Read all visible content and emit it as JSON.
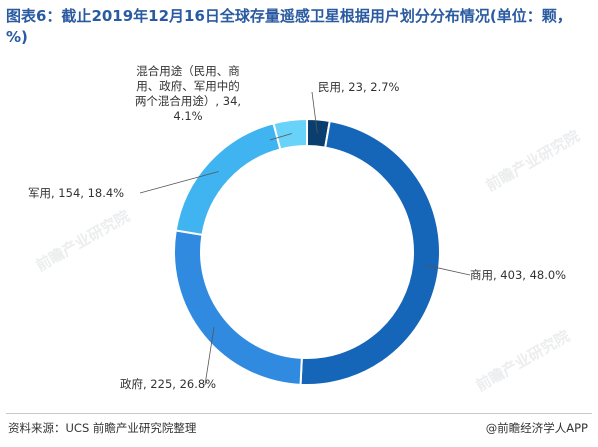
{
  "title": "图表6：截止2019年12月16日全球存量遥感卫星根据用户划分分布情况(单位：颗，%)",
  "source": "资料来源：UCS 前瞻产业研究院整理",
  "brand": "@前瞻经济学人APP",
  "watermarks": [
    "前瞻产业研究院",
    "前瞻产业研究院",
    "前瞻产业研究院"
  ],
  "chart_data": {
    "type": "pie",
    "variant": "donut",
    "slices": [
      {
        "label": "民用",
        "value": 23,
        "percent": "2.7%",
        "color": "#0a3e6e",
        "display": "民用, 23, 2.7%"
      },
      {
        "label": "商用",
        "value": 403,
        "percent": "48.0%",
        "color": "#1565b8",
        "display": "商用, 403, 48.0%"
      },
      {
        "label": "政府",
        "value": 225,
        "percent": "26.8%",
        "color": "#2f8ae0",
        "display": "政府, 225, 26.8%"
      },
      {
        "label": "军用",
        "value": 154,
        "percent": "18.4%",
        "color": "#3fb4f0",
        "display": "军用, 154, 18.4%"
      },
      {
        "label": "混合用途（民用、商用、政府、军用中的两个混合用途）",
        "value": 34,
        "percent": "4.1%",
        "color": "#69d2f8",
        "display": "混合用途（民用、商用、政府、军用中的两个混合用途）, 34, 4.1%"
      }
    ]
  }
}
